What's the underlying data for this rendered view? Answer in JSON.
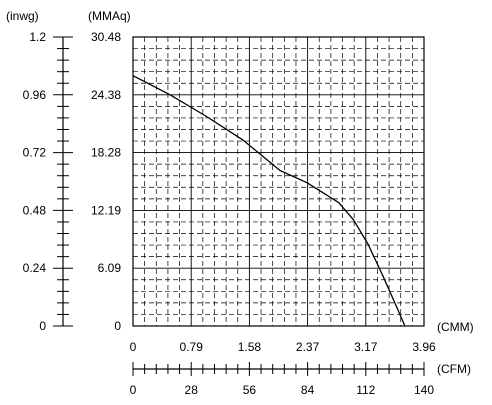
{
  "chart_data": {
    "type": "line",
    "title": "",
    "xlabel": "",
    "ylabel": "",
    "x_units": [
      "(CMM)",
      "(CFM)"
    ],
    "y_units": [
      "(inwg)",
      "(MMAq)"
    ],
    "x_primary_ticks": [
      "0",
      "0.79",
      "1.58",
      "2.37",
      "3.17",
      "3.96"
    ],
    "x_secondary_ticks": [
      "0",
      "28",
      "56",
      "84",
      "112",
      "140"
    ],
    "y_inwg_ticks": [
      "0",
      "0.24",
      "0.48",
      "0.72",
      "0.96",
      "1.2"
    ],
    "y_mmaq_ticks": [
      "0",
      "6.09",
      "12.19",
      "18.28",
      "24.38",
      "30.48"
    ],
    "xlim": [
      0,
      3.96
    ],
    "ylim": [
      0,
      30.48
    ],
    "grid": true,
    "series": [
      {
        "x": [
          0,
          0.5,
          1.0,
          1.5,
          2.0,
          2.37,
          2.8,
          3.0,
          3.2,
          3.4,
          3.6,
          3.7
        ],
        "y": [
          26.4,
          24.4,
          22.1,
          19.6,
          16.4,
          15.1,
          13.0,
          11.2,
          8.6,
          5.3,
          1.8,
          0
        ]
      }
    ]
  }
}
